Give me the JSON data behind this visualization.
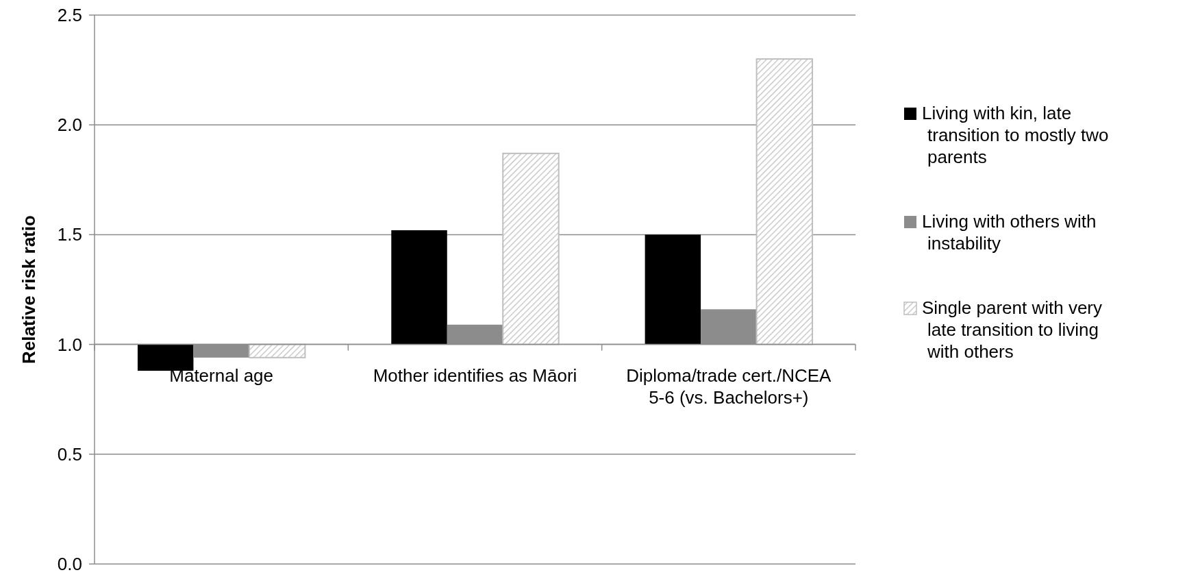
{
  "chart_data": {
    "type": "bar",
    "ylabel": "Relative risk ratio",
    "categories": [
      "Maternal age",
      "Mother identifies as Māori",
      "Diploma/trade cert./NCEA 5-6 (vs. Bachelors+)"
    ],
    "series": [
      {
        "name": "Living with kin, late transition to mostly two parents",
        "color": "#000000",
        "base": [
          1,
          1,
          1
        ],
        "values": [
          -0.12,
          0.52,
          0.5
        ]
      },
      {
        "name": "Living with others with instability",
        "color": "#8c8c8c",
        "base": [
          1,
          1,
          1
        ],
        "values": [
          -0.06,
          0.09,
          0.16
        ]
      },
      {
        "name": "Single parent with very late transition to living with others",
        "color": "#bfbfbf",
        "base": [
          1,
          1,
          1
        ],
        "values": [
          -0.06,
          0.87,
          1.3
        ]
      }
    ],
    "ylim": [
      0,
      2.5
    ],
    "yticks": [
      {
        "value": 0,
        "label": "0.0"
      },
      {
        "value": 0.5,
        "label": "0.5"
      },
      {
        "value": 1,
        "label": "1.0"
      },
      {
        "value": 1.5,
        "label": "1.5"
      },
      {
        "value": 2,
        "label": "2.0"
      },
      {
        "value": 2.5,
        "label": "2.5"
      }
    ],
    "grid": "y",
    "legend": "right"
  }
}
